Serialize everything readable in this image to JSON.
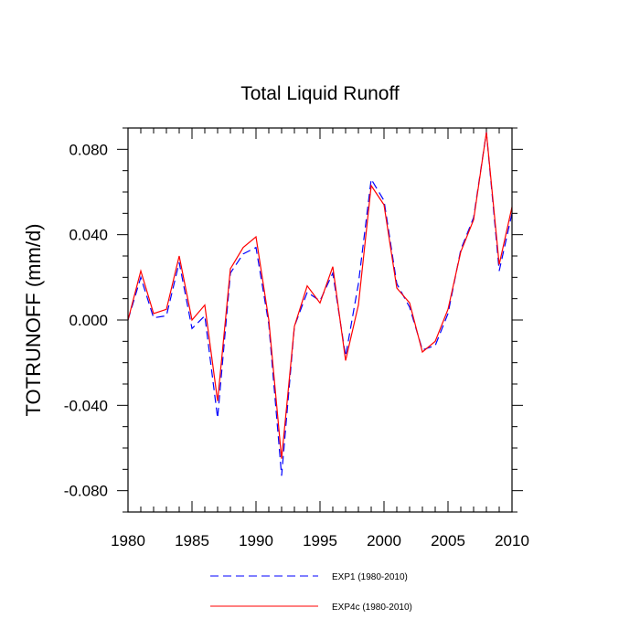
{
  "chart_data": {
    "type": "line",
    "title": "Total Liquid Runoff",
    "xlabel": "",
    "ylabel": "TOTRUNOFF  (mm/d)",
    "xlim": [
      1980,
      2010
    ],
    "ylim": [
      -0.09,
      0.09
    ],
    "x_ticks": [
      1980,
      1985,
      1990,
      1995,
      2000,
      2005,
      2010
    ],
    "x_tick_labels": [
      "1980",
      "1985",
      "1990",
      "1995",
      "2000",
      "2005",
      "2010"
    ],
    "y_ticks": [
      -0.08,
      -0.04,
      0.0,
      0.04,
      0.08
    ],
    "y_tick_labels": [
      "-0.080",
      "-0.040",
      "0.000",
      "0.040",
      "0.080"
    ],
    "grid": false,
    "legend_position": "bottom",
    "x": [
      1980,
      1981,
      1982,
      1983,
      1984,
      1985,
      1986,
      1987,
      1988,
      1989,
      1990,
      1991,
      1992,
      1993,
      1994,
      1995,
      1996,
      1997,
      1998,
      1999,
      2000,
      2001,
      2002,
      2003,
      2004,
      2005,
      2006,
      2007,
      2008,
      2009,
      2010
    ],
    "series": [
      {
        "name": "EXP1 (1980-2010)",
        "color": "#0000ff",
        "style": "dashed",
        "values": [
          0.0,
          0.02,
          0.001,
          0.002,
          0.027,
          -0.004,
          0.002,
          -0.046,
          0.022,
          0.031,
          0.034,
          -0.002,
          -0.073,
          -0.003,
          0.013,
          0.009,
          0.022,
          -0.017,
          0.017,
          0.066,
          0.056,
          0.017,
          0.006,
          -0.014,
          -0.012,
          0.003,
          0.033,
          0.048,
          0.088,
          0.023,
          0.05
        ]
      },
      {
        "name": "EXP4c (1980-2010)",
        "color": "#ff0000",
        "style": "solid",
        "values": [
          0.0,
          0.023,
          0.003,
          0.005,
          0.03,
          0.0,
          0.007,
          -0.038,
          0.024,
          0.034,
          0.039,
          0.0,
          -0.065,
          -0.003,
          0.016,
          0.008,
          0.025,
          -0.019,
          0.007,
          0.063,
          0.054,
          0.015,
          0.008,
          -0.015,
          -0.01,
          0.005,
          0.032,
          0.047,
          0.088,
          0.026,
          0.053
        ]
      }
    ]
  }
}
